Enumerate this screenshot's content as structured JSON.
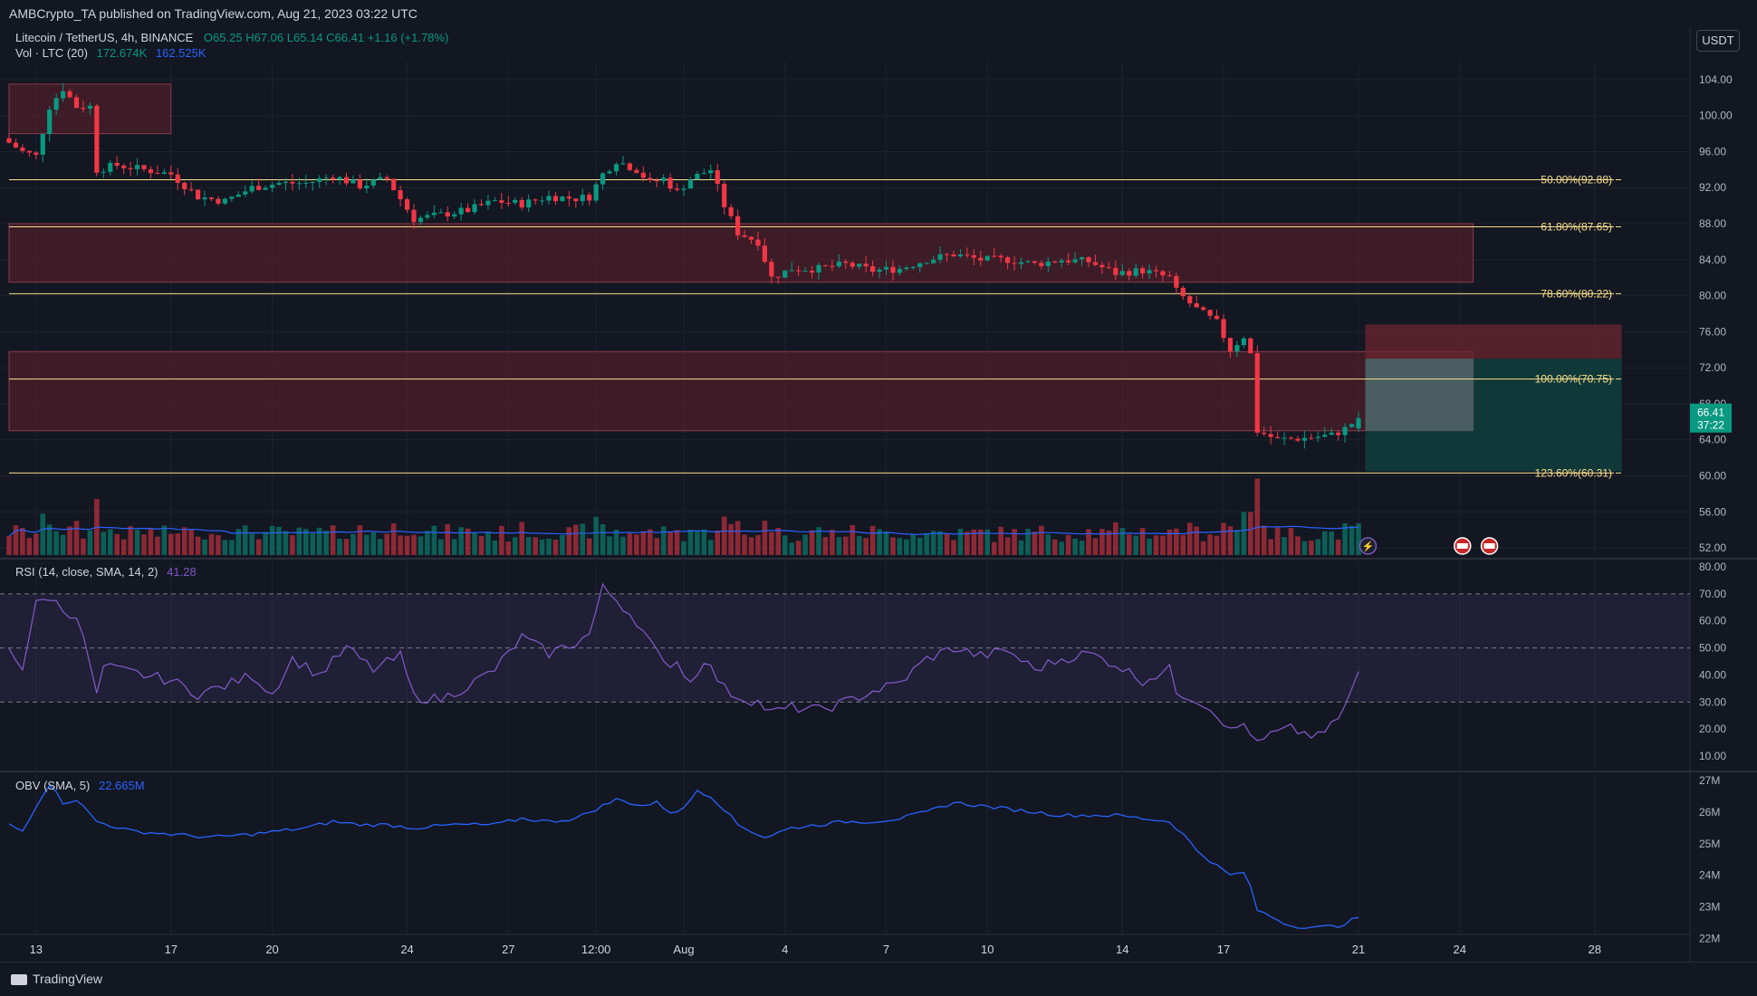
{
  "header": {
    "publisher": "AMBCrypto_TA published on TradingView.com, Aug 21, 2023 03:22 UTC",
    "symbol": "Litecoin / TetherUS, 4h, BINANCE",
    "ohlc": {
      "open": "O65.25",
      "high": "H67.06",
      "low": "L65.14",
      "close": "C66.41",
      "change": "+1.16 (+1.78%)"
    },
    "volume_label": "Vol · LTC (20)",
    "volume_value": "172.674K",
    "volume_ma": "162.525K",
    "currency_button": "USDT"
  },
  "colors": {
    "bull": "#089981",
    "bear": "#f23645",
    "fib": "#f7e08b",
    "zone": "#5a1f2b",
    "rsi": "#7e57c2",
    "obv": "#2962ff",
    "bg": "#131722"
  },
  "chart_data": [
    {
      "type": "candlestick",
      "name": "price",
      "price_axis_ticks": [
        "104.00",
        "100.00",
        "96.00",
        "92.00",
        "88.00",
        "84.00",
        "80.00",
        "76.00",
        "72.00",
        "68.00",
        "64.00",
        "60.00",
        "56.00",
        "52.00"
      ],
      "ylim": [
        51,
        106
      ],
      "current_price": "66.41",
      "countdown": "37:22",
      "fib_levels": [
        {
          "label": "50.00%(92.88)",
          "value": 92.88
        },
        {
          "label": "61.80%(87.65)",
          "value": 87.65
        },
        {
          "label": "78.60%(80.22)",
          "value": 80.22
        },
        {
          "label": "100.00%(70.75)",
          "value": 70.75
        },
        {
          "label": "123.60%(60.31)",
          "value": 60.31
        }
      ],
      "zones": [
        {
          "from_bar": 0,
          "to_bar": 24,
          "low": 98.0,
          "high": 103.5
        },
        {
          "from_bar": 0,
          "to_bar": 217,
          "low": 81.5,
          "high": 88.0
        },
        {
          "from_bar": 0,
          "to_bar": 217,
          "low": 65.0,
          "high": 73.8
        }
      ],
      "short_position": {
        "from_bar": 201,
        "to_bar": 239,
        "entry": 73.0,
        "stop": 76.8,
        "target": 60.5
      },
      "x_ticks": [
        {
          "label": "13",
          "bar": 4
        },
        {
          "label": "17",
          "bar": 24
        },
        {
          "label": "20",
          "bar": 39
        },
        {
          "label": "24",
          "bar": 59
        },
        {
          "label": "27",
          "bar": 74
        },
        {
          "label": "12:00",
          "bar": 87
        },
        {
          "label": "Aug",
          "bar": 100
        },
        {
          "label": "4",
          "bar": 115
        },
        {
          "label": "7",
          "bar": 130
        },
        {
          "label": "10",
          "bar": 145
        },
        {
          "label": "14",
          "bar": 165
        },
        {
          "label": "17",
          "bar": 180
        },
        {
          "label": "21",
          "bar": 200
        },
        {
          "label": "24",
          "bar": 215
        },
        {
          "label": "28",
          "bar": 235
        }
      ],
      "close_anchors": [
        [
          0,
          97
        ],
        [
          2,
          96
        ],
        [
          4,
          95.5
        ],
        [
          6,
          101
        ],
        [
          8,
          103
        ],
        [
          10,
          101
        ],
        [
          12,
          101
        ],
        [
          13,
          94
        ],
        [
          16,
          94.5
        ],
        [
          20,
          94
        ],
        [
          24,
          93.5
        ],
        [
          28,
          91
        ],
        [
          32,
          90.5
        ],
        [
          36,
          92
        ],
        [
          40,
          92.5
        ],
        [
          44,
          92.5
        ],
        [
          48,
          93.3
        ],
        [
          52,
          92.2
        ],
        [
          56,
          93
        ],
        [
          60,
          88.5
        ],
        [
          64,
          89
        ],
        [
          68,
          89.5
        ],
        [
          72,
          90.5
        ],
        [
          76,
          90.2
        ],
        [
          80,
          91
        ],
        [
          84,
          90.8
        ],
        [
          86,
          91
        ],
        [
          88,
          93.5
        ],
        [
          90,
          95
        ],
        [
          93,
          94
        ],
        [
          95,
          92.5
        ],
        [
          97,
          93
        ],
        [
          99,
          91.5
        ],
        [
          101,
          93
        ],
        [
          104,
          94
        ],
        [
          106,
          90
        ],
        [
          108,
          87
        ],
        [
          111,
          86
        ],
        [
          113,
          82
        ],
        [
          116,
          83
        ],
        [
          120,
          83
        ],
        [
          124,
          83.5
        ],
        [
          128,
          82.8
        ],
        [
          132,
          83
        ],
        [
          136,
          84
        ],
        [
          140,
          84.6
        ],
        [
          144,
          84
        ],
        [
          148,
          84
        ],
        [
          152,
          83.5
        ],
        [
          156,
          84
        ],
        [
          160,
          83.8
        ],
        [
          164,
          82.5
        ],
        [
          168,
          82.8
        ],
        [
          172,
          82
        ],
        [
          173,
          80.5
        ],
        [
          176,
          78.5
        ],
        [
          179,
          77
        ],
        [
          181,
          74
        ],
        [
          183,
          75.5
        ],
        [
          184,
          73.5
        ],
        [
          185,
          65
        ],
        [
          188,
          64
        ],
        [
          192,
          64.2
        ],
        [
          196,
          64.5
        ],
        [
          198,
          65.2
        ],
        [
          200,
          66.41
        ]
      ]
    },
    {
      "type": "line",
      "name": "RSI",
      "legend": "RSI (14, close, SMA, 14, 2)",
      "value": "41.28",
      "ylim": [
        5,
        82
      ],
      "ticks": [
        "80.00",
        "70.00",
        "60.00",
        "50.00",
        "40.00",
        "30.00",
        "20.00",
        "10.00"
      ],
      "bands": [
        30,
        50,
        70
      ],
      "anchors": [
        [
          0,
          50
        ],
        [
          2,
          43
        ],
        [
          4,
          66
        ],
        [
          6,
          69
        ],
        [
          8,
          64
        ],
        [
          10,
          62
        ],
        [
          12,
          44
        ],
        [
          13,
          32
        ],
        [
          14,
          43
        ],
        [
          20,
          40
        ],
        [
          24,
          38
        ],
        [
          28,
          33
        ],
        [
          32,
          36
        ],
        [
          36,
          40
        ],
        [
          39,
          33
        ],
        [
          42,
          46
        ],
        [
          46,
          40
        ],
        [
          50,
          50
        ],
        [
          54,
          42
        ],
        [
          58,
          47
        ],
        [
          60,
          32
        ],
        [
          64,
          31
        ],
        [
          68,
          36
        ],
        [
          72,
          42
        ],
        [
          76,
          54
        ],
        [
          80,
          48
        ],
        [
          84,
          52
        ],
        [
          86,
          55
        ],
        [
          88,
          72
        ],
        [
          90,
          68
        ],
        [
          93,
          60
        ],
        [
          95,
          52
        ],
        [
          97,
          44
        ],
        [
          99,
          45
        ],
        [
          101,
          37
        ],
        [
          103,
          46
        ],
        [
          106,
          35
        ],
        [
          108,
          32
        ],
        [
          111,
          30
        ],
        [
          113,
          26
        ],
        [
          116,
          28
        ],
        [
          120,
          27
        ],
        [
          124,
          30
        ],
        [
          128,
          34
        ],
        [
          132,
          37
        ],
        [
          136,
          46
        ],
        [
          140,
          50
        ],
        [
          144,
          47
        ],
        [
          148,
          49
        ],
        [
          152,
          42
        ],
        [
          156,
          46
        ],
        [
          160,
          48
        ],
        [
          164,
          44
        ],
        [
          168,
          38
        ],
        [
          172,
          42
        ],
        [
          173,
          34
        ],
        [
          176,
          31
        ],
        [
          179,
          26
        ],
        [
          181,
          19
        ],
        [
          183,
          22
        ],
        [
          184,
          19
        ],
        [
          185,
          14
        ],
        [
          187,
          18
        ],
        [
          190,
          20
        ],
        [
          194,
          17
        ],
        [
          196,
          21
        ],
        [
          198,
          28
        ],
        [
          200,
          41.28
        ]
      ]
    },
    {
      "type": "line",
      "name": "OBV",
      "legend": "OBV (SMA, 5)",
      "value": "22.665M",
      "ylim": [
        21.9,
        27.2
      ],
      "ticks": [
        "27M",
        "26M",
        "25M",
        "24M",
        "23M",
        "22M"
      ],
      "anchors": [
        [
          0,
          25.6
        ],
        [
          2,
          25.4
        ],
        [
          4,
          26.2
        ],
        [
          6,
          26.9
        ],
        [
          8,
          26.3
        ],
        [
          10,
          26.4
        ],
        [
          13,
          25.7
        ],
        [
          18,
          25.4
        ],
        [
          24,
          25.3
        ],
        [
          30,
          25.2
        ],
        [
          36,
          25.3
        ],
        [
          40,
          25.4
        ],
        [
          44,
          25.5
        ],
        [
          48,
          25.7
        ],
        [
          52,
          25.6
        ],
        [
          56,
          25.6
        ],
        [
          60,
          25.5
        ],
        [
          66,
          25.6
        ],
        [
          72,
          25.6
        ],
        [
          76,
          25.8
        ],
        [
          80,
          25.7
        ],
        [
          84,
          25.8
        ],
        [
          88,
          26.2
        ],
        [
          90,
          26.4
        ],
        [
          94,
          26.2
        ],
        [
          96,
          26.3
        ],
        [
          98,
          26.0
        ],
        [
          100,
          26.1
        ],
        [
          102,
          26.7
        ],
        [
          104,
          26.5
        ],
        [
          106,
          26.1
        ],
        [
          108,
          25.6
        ],
        [
          112,
          25.2
        ],
        [
          116,
          25.5
        ],
        [
          120,
          25.6
        ],
        [
          124,
          25.7
        ],
        [
          128,
          25.7
        ],
        [
          132,
          25.8
        ],
        [
          136,
          26.0
        ],
        [
          140,
          26.3
        ],
        [
          144,
          26.2
        ],
        [
          148,
          26.1
        ],
        [
          152,
          26.0
        ],
        [
          156,
          25.9
        ],
        [
          160,
          25.9
        ],
        [
          164,
          25.9
        ],
        [
          168,
          25.8
        ],
        [
          172,
          25.7
        ],
        [
          174,
          25.3
        ],
        [
          176,
          24.8
        ],
        [
          179,
          24.3
        ],
        [
          181,
          24.0
        ],
        [
          183,
          24.1
        ],
        [
          184,
          23.6
        ],
        [
          185,
          22.9
        ],
        [
          188,
          22.6
        ],
        [
          190,
          22.4
        ],
        [
          194,
          22.35
        ],
        [
          197,
          22.4
        ],
        [
          200,
          22.665
        ]
      ]
    }
  ],
  "footer": {
    "brand": "TradingView"
  }
}
